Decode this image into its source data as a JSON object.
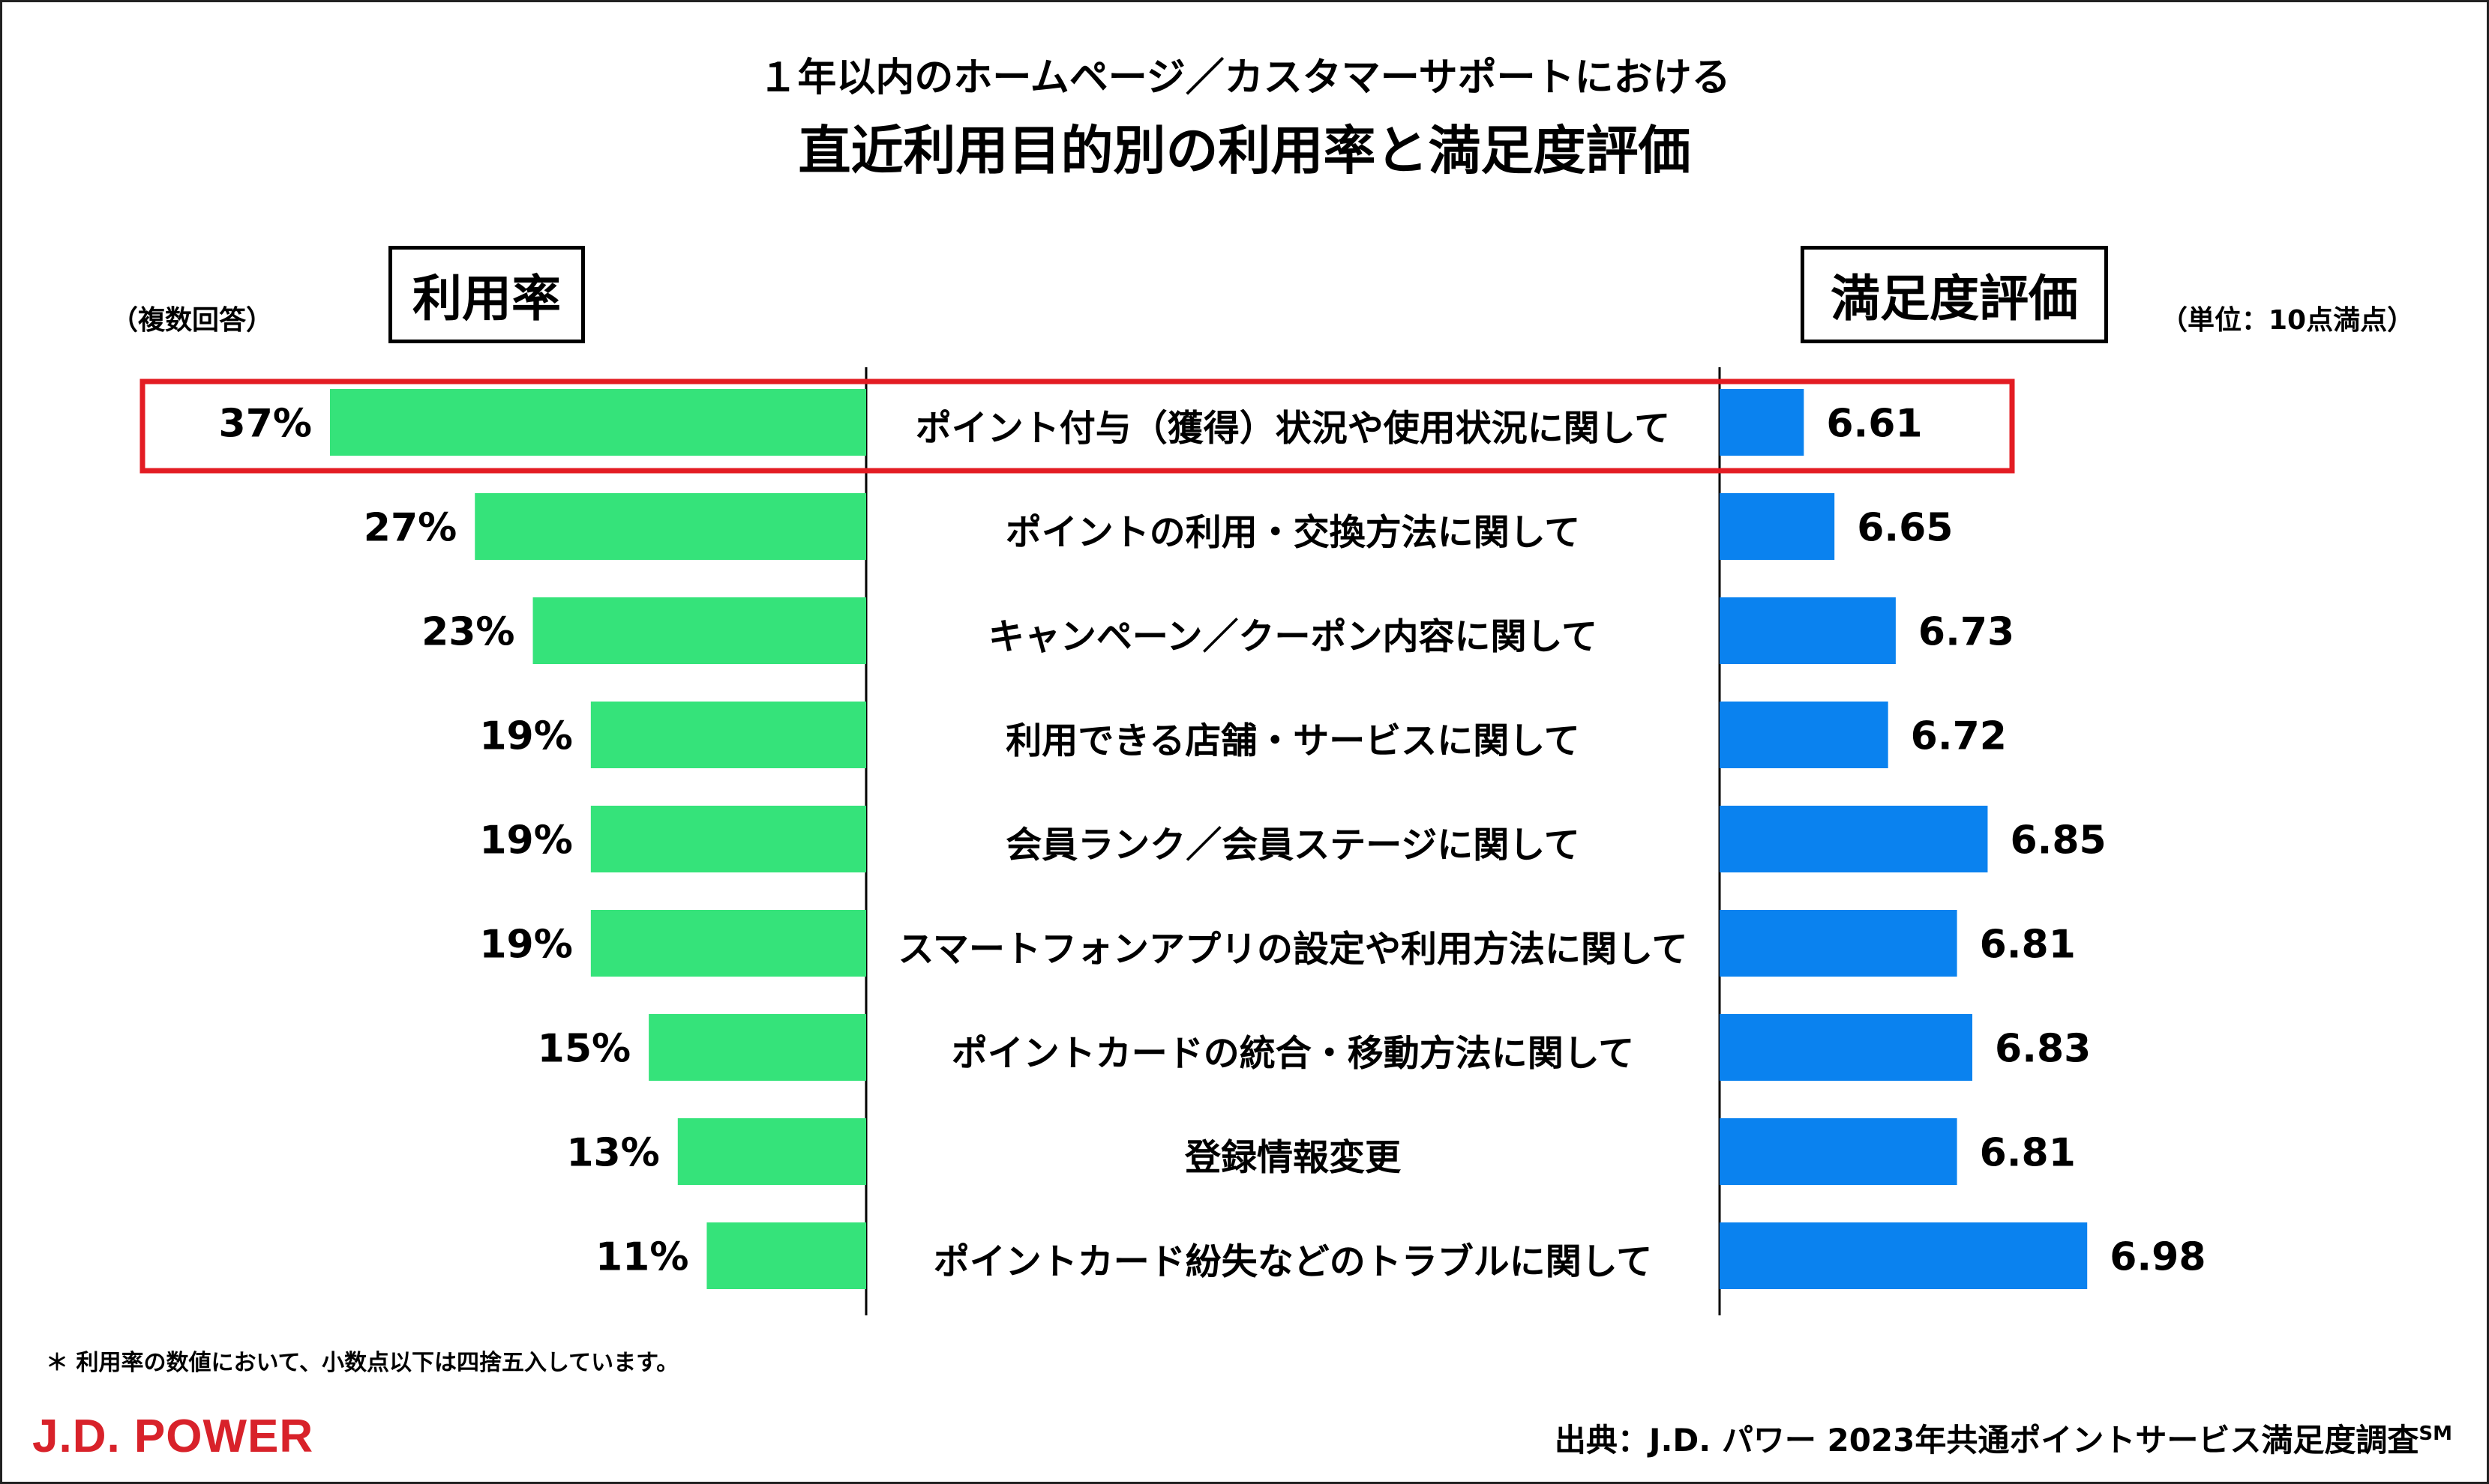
{
  "title": {
    "line1": "１年以内のホームページ／カスタマーサポートにおける",
    "line2": "直近利用目的別の利用率と満足度評価"
  },
  "left_header": "利用率",
  "right_header": "満足度評価",
  "left_note": "（複数回答）",
  "right_note": "（単位：10点満点）",
  "footnote": "＊ 利用率の数値において、小数点以下は四捨五入しています。",
  "source": {
    "text": "出典：J.D. パワー 2023年共通ポイントサービス満足度調査",
    "superscript": "SM"
  },
  "logo": "J.D. POWER",
  "colors": {
    "usage_bar": "#35e37a",
    "satisfaction_bar": "#0a82ef",
    "highlight": "#e31c23",
    "divider": "#000000"
  },
  "chart_data": {
    "type": "bar",
    "title": "直近利用目的別の利用率と満足度評価",
    "categories": [
      "ポイント付与（獲得）状況や使用状況に関して",
      "ポイントの利用・交換方法に関して",
      "キャンペーン／クーポン内容に関して",
      "利用できる店舗・サービスに関して",
      "会員ランク／会員ステージに関して",
      "スマートフォンアプリの設定や利用方法に関して",
      "ポイントカードの統合・移動方法に関して",
      "登録情報変更",
      "ポイントカード紛失などのトラブルに関して"
    ],
    "series": [
      {
        "name": "利用率",
        "unit": "%",
        "values": [
          37,
          27,
          23,
          19,
          19,
          19,
          15,
          13,
          11
        ],
        "labels": [
          "37%",
          "27%",
          "23%",
          "19%",
          "19%",
          "19%",
          "15%",
          "13%",
          "11%"
        ]
      },
      {
        "name": "満足度評価",
        "unit": "10点満点",
        "values": [
          6.61,
          6.65,
          6.73,
          6.72,
          6.85,
          6.81,
          6.83,
          6.81,
          6.98
        ],
        "labels": [
          "6.61",
          "6.65",
          "6.73",
          "6.72",
          "6.85",
          "6.81",
          "6.83",
          "6.81",
          "6.98"
        ]
      }
    ],
    "usage_axis_range": [
      0,
      37
    ],
    "satisfaction_axis_range": [
      6.5,
      7.0
    ],
    "highlighted_category_index": 0
  }
}
